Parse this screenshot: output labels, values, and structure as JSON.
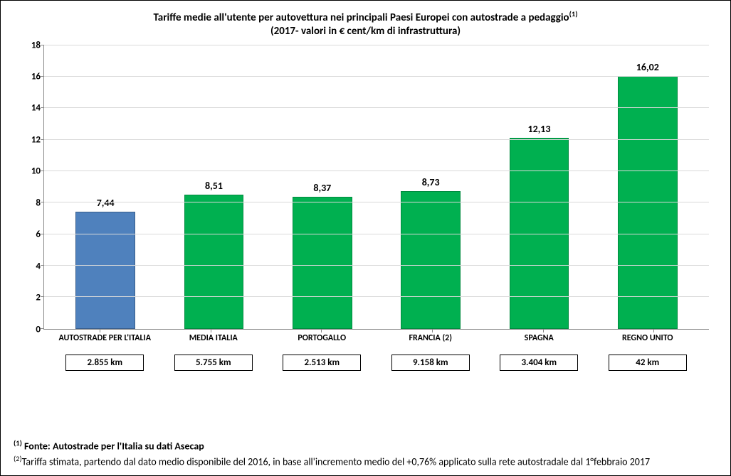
{
  "title": {
    "line1_pre": "Tariffe medie all'utente per autovettura nei principali Paesi Europei con autostrade a pedaggio",
    "line1_sup": "(1)",
    "line2": "(2017- valori in € cent/km di infrastruttura)",
    "fontsize": 15
  },
  "chart": {
    "type": "bar",
    "ylim": [
      0,
      18
    ],
    "ytick_step": 2,
    "y_ticks": [
      0,
      2,
      4,
      6,
      8,
      10,
      12,
      14,
      16,
      18
    ],
    "grid_color": "#d9d9d9",
    "axis_color": "#888888",
    "background_color": "#ffffff",
    "bar_width_ratio": 0.55,
    "label_fontsize": 14,
    "label_fontweight": "bold",
    "xlabel_fontsize": 12,
    "bars": [
      {
        "category": "AUTOSTRADE PER L'ITALIA",
        "value": 7.44,
        "value_label": "7,44",
        "color": "#4f81bd",
        "border_color": "#385d8a",
        "km": "2.855 km"
      },
      {
        "category": "MEDIA ITALIA",
        "value": 8.51,
        "value_label": "8,51",
        "color": "#00b050",
        "border_color": "#008a3e",
        "km": "5.755 km"
      },
      {
        "category": "PORTOGALLO",
        "value": 8.37,
        "value_label": "8,37",
        "color": "#00b050",
        "border_color": "#008a3e",
        "km": "2.513 km"
      },
      {
        "category": "FRANCIA (2)",
        "value": 8.73,
        "value_label": "8,73",
        "color": "#00b050",
        "border_color": "#008a3e",
        "km": "9.158 km"
      },
      {
        "category": "SPAGNA",
        "value": 12.13,
        "value_label": "12,13",
        "color": "#00b050",
        "border_color": "#008a3e",
        "km": "3.404 km"
      },
      {
        "category": "REGNO UNITO",
        "value": 16.02,
        "value_label": "16,02",
        "color": "#00b050",
        "border_color": "#008a3e",
        "km": "42 km"
      }
    ]
  },
  "footnotes": {
    "fn1_sup": "(1)",
    "fn1_text": " Fonte: Autostrade per l'Italia su dati Asecap",
    "fn2_sup": "(2)",
    "fn2_text": "Tariffa stimata, partendo dal dato medio disponibile del 2016,  in base all'incremento medio del +0,76% applicato sulla rete autostradale dal 1°febbraio 2017"
  }
}
